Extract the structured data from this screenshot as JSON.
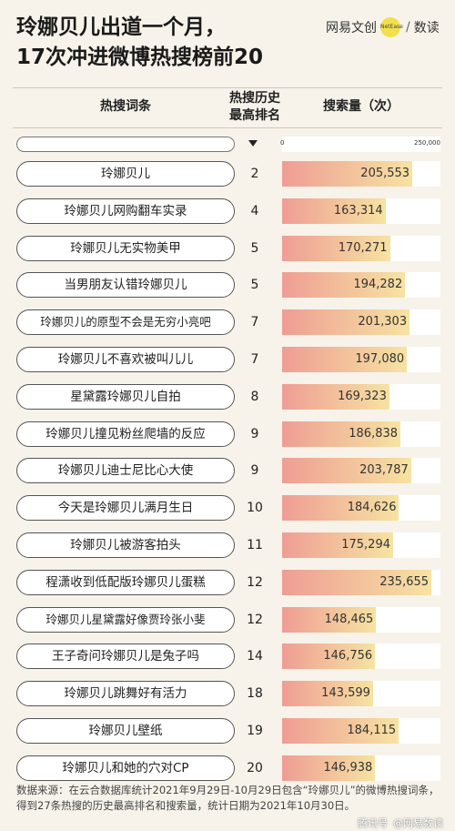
{
  "header": {
    "title_line1": "玲娜贝儿出道一个月，",
    "title_line2": "17次冲进微博热搜榜前20",
    "brand_left": "网易文创",
    "brand_dot": "NetEase",
    "brand_sep": "/",
    "brand_right": "数读"
  },
  "columns": {
    "topic": "热搜词条",
    "rank_line1": "热搜历史",
    "rank_line2": "最高排名",
    "volume": "搜索量（次）"
  },
  "axis": {
    "min_label": "0",
    "max_label": "250,000"
  },
  "colors": {
    "gradient_left": "#ef9d94",
    "gradient_right": "#f6e3a2"
  },
  "chart_data": {
    "type": "bar",
    "orientation": "horizontal",
    "xlim": [
      0,
      250000
    ],
    "categories": [
      "玲娜贝儿",
      "玲娜贝儿网购翻车实录",
      "玲娜贝儿无实物美甲",
      "当男朋友认错玲娜贝儿",
      "玲娜贝儿的原型不会是无穷小亮吧",
      "玲娜贝儿不喜欢被叫儿儿",
      "星黛露玲娜贝儿自拍",
      "玲娜贝儿撞见粉丝爬墙的反应",
      "玲娜贝儿迪士尼比心大使",
      "今天是玲娜贝儿满月生日",
      "玲娜贝儿被游客拍头",
      "程潇收到低配版玲娜贝儿蛋糕",
      "玲娜贝儿星黛露好像贾玲张小斐",
      "王子奇问玲娜贝儿是兔子吗",
      "玲娜贝儿跳舞好有活力",
      "玲娜贝儿壁纸",
      "玲娜贝儿和她的穴对CP"
    ],
    "ranks": [
      "2",
      "4",
      "5",
      "5",
      "7",
      "7",
      "8",
      "9",
      "9",
      "10",
      "11",
      "12",
      "12",
      "14",
      "18",
      "19",
      "20"
    ],
    "values": [
      205553,
      163314,
      170271,
      194282,
      201303,
      197080,
      169323,
      186838,
      203787,
      184626,
      175294,
      235655,
      148465,
      146756,
      143599,
      184115,
      146938
    ],
    "value_labels": [
      "205,553",
      "163,314",
      "170,271",
      "194,282",
      "201,303",
      "197,080",
      "169,323",
      "186,838",
      "203,787",
      "184,626",
      "175,294",
      "235,655",
      "148,465",
      "146,756",
      "143,599",
      "184,115",
      "146,938"
    ]
  },
  "footer": {
    "note": "数据来源：在云合数据库统计2021年9月29日-10月29日包含“玲娜贝儿”的微博热搜词条，得到27条热搜的历史最高排名和搜索量，统计日期为2021年10月30日。",
    "watermark1": "腾讯号",
    "watermark2": "@网易数读"
  }
}
